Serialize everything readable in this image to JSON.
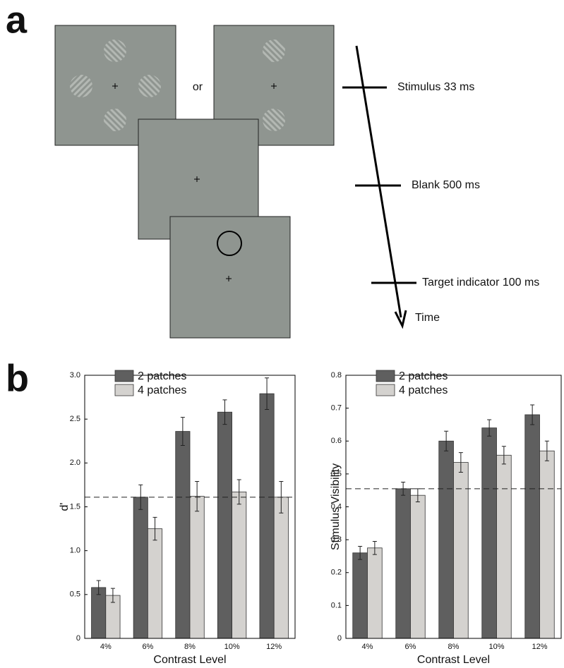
{
  "panel_labels": [
    "a",
    "b"
  ],
  "diagram": {
    "or": "or",
    "events": [
      "Stimulus 33 ms",
      "Blank 500 ms",
      "Target indicator 100 ms"
    ],
    "time": "Time"
  },
  "chart_data": [
    {
      "type": "bar",
      "xlabel": "Contrast Level",
      "ylabel": "d'",
      "categories": [
        "4%",
        "6%",
        "8%",
        "10%",
        "12%"
      ],
      "series": [
        {
          "name": "2 patches",
          "color": "#5f5f5f",
          "values": [
            0.58,
            1.61,
            2.36,
            2.58,
            2.79
          ],
          "errors": [
            0.08,
            0.14,
            0.16,
            0.14,
            0.18
          ]
        },
        {
          "name": "4 patches",
          "color": "#d4d2cf",
          "values": [
            0.49,
            1.25,
            1.62,
            1.67,
            1.61
          ],
          "errors": [
            0.08,
            0.13,
            0.17,
            0.14,
            0.18
          ]
        }
      ],
      "ylim": [
        0,
        3
      ],
      "yticks": [
        0,
        0.5,
        {
          "value": 1,
          "label": "1.0"
        },
        1.5,
        {
          "value": 2,
          "label": "2.0"
        },
        2.5,
        {
          "value": 3,
          "label": "3.0"
        }
      ],
      "reference_line": 1.61,
      "legend": "upper left"
    },
    {
      "type": "bar",
      "xlabel": "Contrast Level",
      "ylabel": "Stimulus Visibility",
      "categories": [
        "4%",
        "6%",
        "8%",
        "10%",
        "12%"
      ],
      "series": [
        {
          "name": "2 patches",
          "color": "#5f5f5f",
          "values": [
            0.26,
            0.455,
            0.6,
            0.64,
            0.68
          ],
          "errors": [
            0.02,
            0.02,
            0.03,
            0.025,
            0.03
          ]
        },
        {
          "name": "4 patches",
          "color": "#d4d2cf",
          "values": [
            0.275,
            0.435,
            0.535,
            0.557,
            0.57
          ],
          "errors": [
            0.02,
            0.02,
            0.03,
            0.027,
            0.03
          ]
        }
      ],
      "ylim": [
        0,
        0.8
      ],
      "yticks": [
        0,
        0.1,
        0.2,
        0.3,
        0.4,
        0.5,
        0.6,
        0.7,
        0.8
      ],
      "reference_line": 0.455,
      "legend": "upper left"
    }
  ]
}
